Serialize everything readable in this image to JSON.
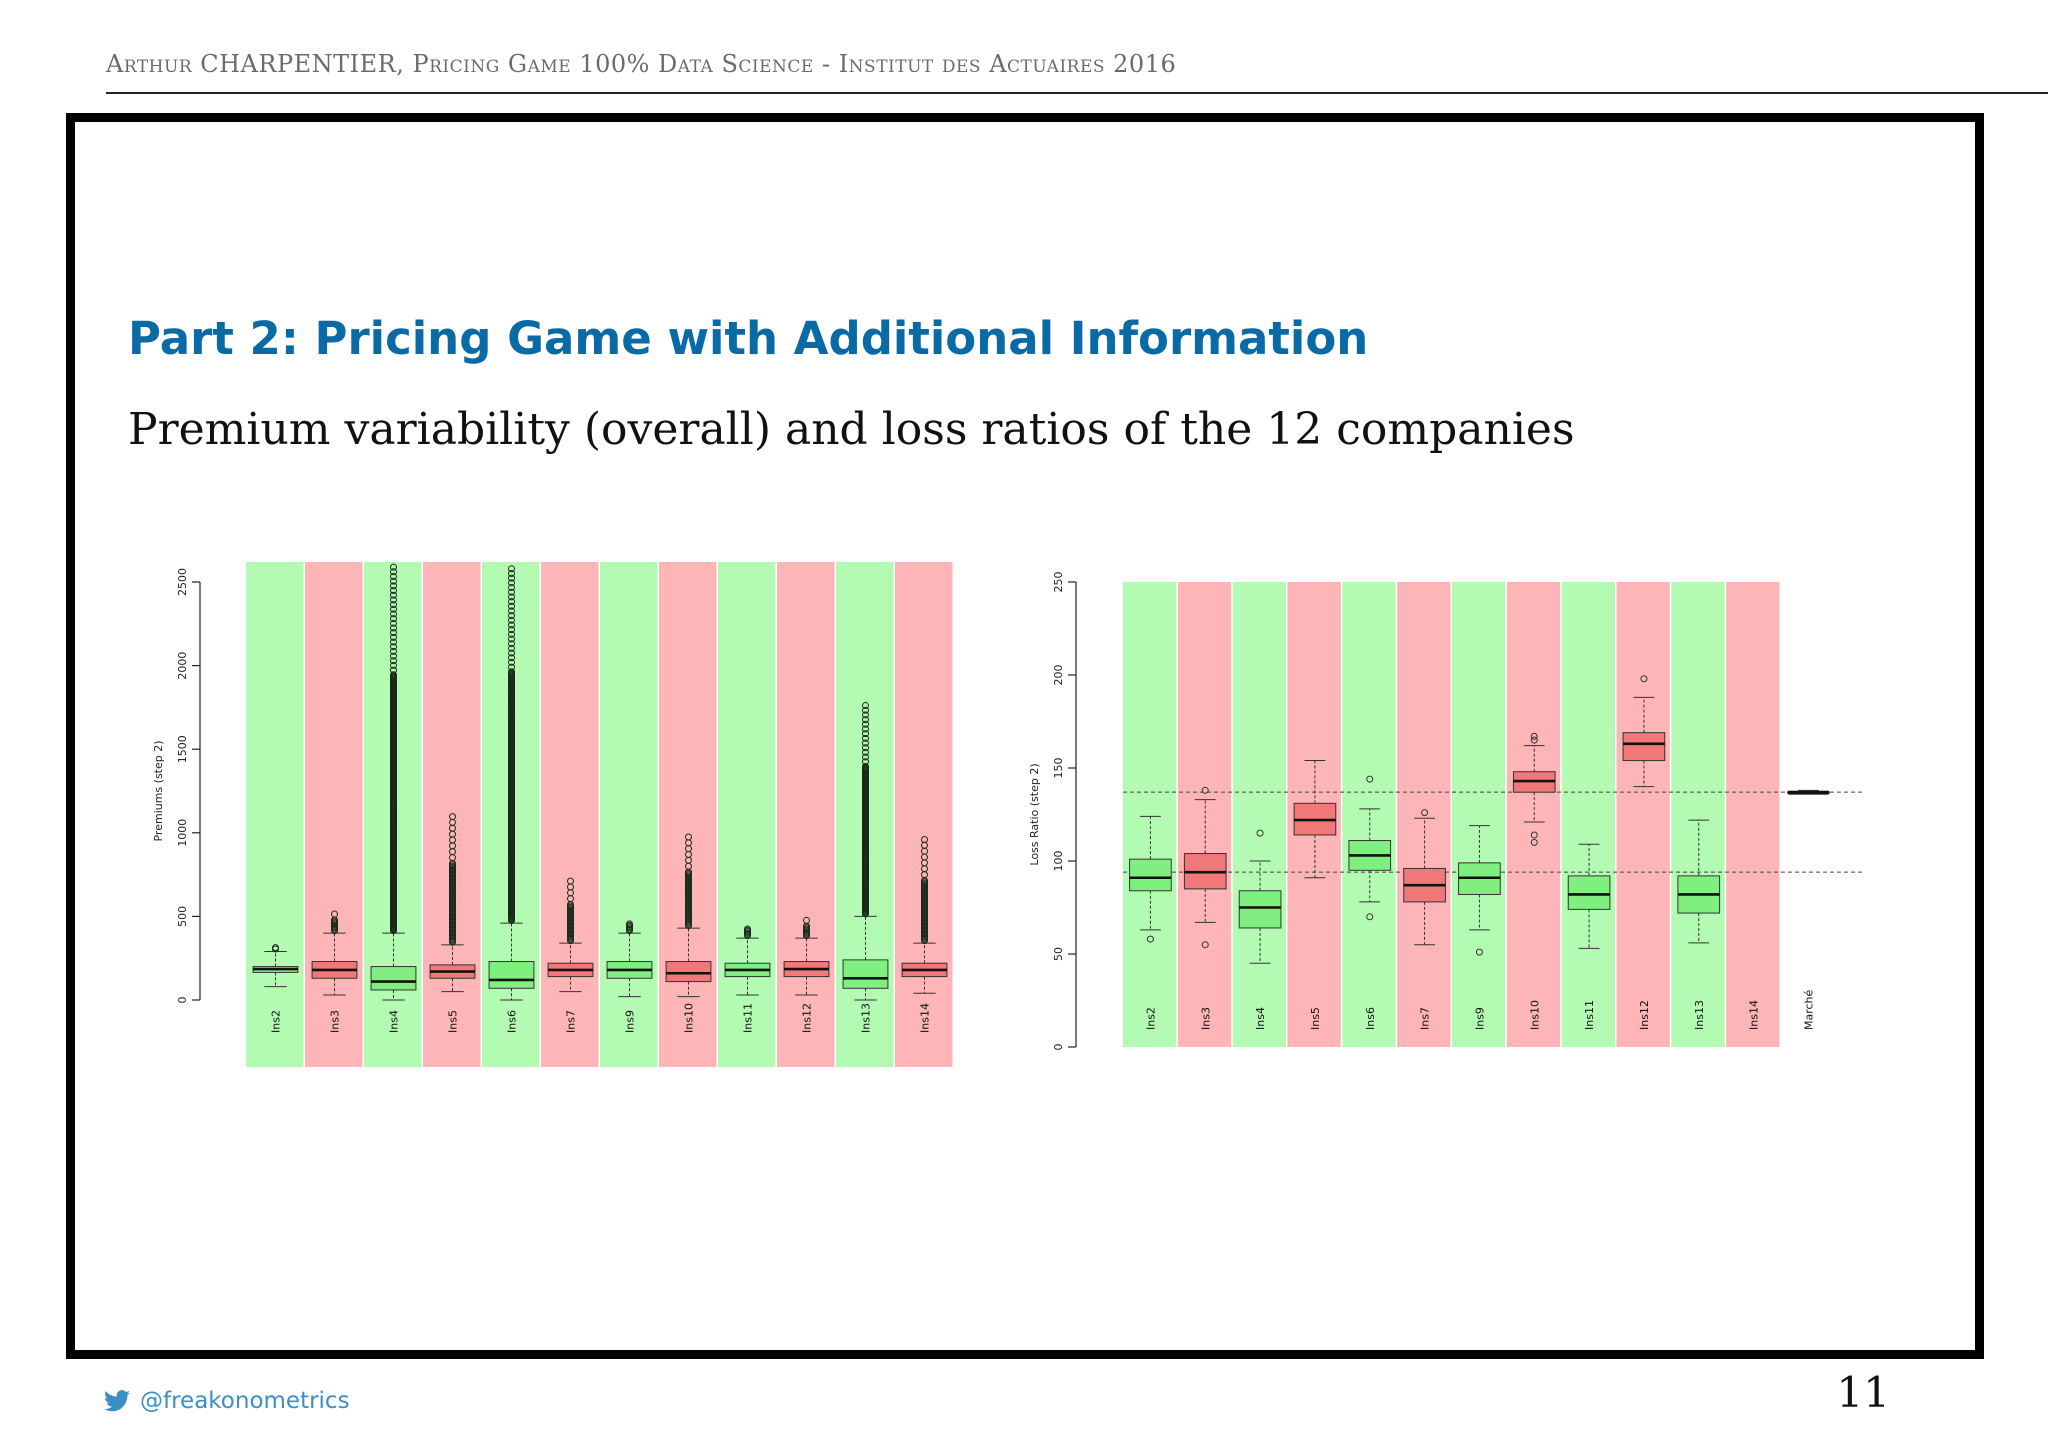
{
  "header": {
    "text": "Arthur CHARPENTIER, Pricing Game 100% Data Science - Institut des Actuaires 2016"
  },
  "slide": {
    "title": "Part 2: Pricing Game with Additional Information",
    "subtitle": "Premium variability (overall) and loss ratios of the 12 companies"
  },
  "footer": {
    "twitter_handle": "@freakonometrics",
    "page_number": "11",
    "icon": "twitter-bird-icon"
  },
  "colors": {
    "green_band": "#b3fbb3",
    "red_band": "#fdb5b8",
    "green_box": "#7ff07f",
    "red_box": "#f07878",
    "title_blue": "#0a6aa6"
  },
  "chart_data": [
    {
      "type": "boxplot",
      "ylabel": "Premiums (step 2)",
      "ylim": [
        0,
        2500
      ],
      "yticks": [
        "0",
        "500",
        "1000",
        "1500",
        "2000",
        "2500"
      ],
      "categories": [
        "Ins2",
        "Ins3",
        "Ins4",
        "Ins5",
        "Ins6",
        "Ins7",
        "Ins9",
        "Ins10",
        "Ins11",
        "Ins12",
        "Ins13",
        "Ins14"
      ],
      "band_colors": [
        "green",
        "red",
        "green",
        "red",
        "green",
        "red",
        "green",
        "red",
        "green",
        "red",
        "green",
        "red"
      ],
      "boxes": [
        {
          "q1": 165,
          "median": 185,
          "q3": 200,
          "whisker_low": 80,
          "whisker_high": 290,
          "outlier_max": 320
        },
        {
          "q1": 130,
          "median": 180,
          "q3": 230,
          "whisker_low": 30,
          "whisker_high": 400,
          "outlier_max": 530
        },
        {
          "q1": 60,
          "median": 110,
          "q3": 200,
          "whisker_low": 0,
          "whisker_high": 400,
          "outlier_max": 2600
        },
        {
          "q1": 130,
          "median": 170,
          "q3": 210,
          "whisker_low": 50,
          "whisker_high": 330,
          "outlier_max": 1130
        },
        {
          "q1": 70,
          "median": 120,
          "q3": 230,
          "whisker_low": 0,
          "whisker_high": 460,
          "outlier_max": 2600
        },
        {
          "q1": 140,
          "median": 180,
          "q3": 220,
          "whisker_low": 50,
          "whisker_high": 340,
          "outlier_max": 720
        },
        {
          "q1": 130,
          "median": 180,
          "q3": 230,
          "whisker_low": 20,
          "whisker_high": 400,
          "outlier_max": 480
        },
        {
          "q1": 110,
          "median": 160,
          "q3": 230,
          "whisker_low": 20,
          "whisker_high": 430,
          "outlier_max": 980
        },
        {
          "q1": 140,
          "median": 180,
          "q3": 220,
          "whisker_low": 30,
          "whisker_high": 370,
          "outlier_max": 450
        },
        {
          "q1": 140,
          "median": 185,
          "q3": 230,
          "whisker_low": 30,
          "whisker_high": 370,
          "outlier_max": 480
        },
        {
          "q1": 70,
          "median": 130,
          "q3": 240,
          "whisker_low": 0,
          "whisker_high": 500,
          "outlier_max": 1780
        },
        {
          "q1": 140,
          "median": 180,
          "q3": 220,
          "whisker_low": 40,
          "whisker_high": 340,
          "outlier_max": 960
        }
      ]
    },
    {
      "type": "boxplot",
      "ylabel": "Loss Ratio (step 2)",
      "ylim": [
        0,
        250
      ],
      "yticks": [
        "0",
        "50",
        "100",
        "150",
        "200",
        "250"
      ],
      "categories": [
        "Ins2",
        "Ins3",
        "Ins4",
        "Ins5",
        "Ins6",
        "Ins7",
        "Ins9",
        "Ins10",
        "Ins11",
        "Ins12",
        "Ins13",
        "Ins14",
        "Marché"
      ],
      "band_colors": [
        "green",
        "red",
        "green",
        "red",
        "green",
        "red",
        "green",
        "red",
        "green",
        "red",
        "green",
        "red"
      ],
      "reference_lines": [
        94,
        137
      ],
      "boxes": [
        {
          "q1": 84,
          "median": 91,
          "q3": 101,
          "whisker_low": 63,
          "whisker_high": 124,
          "outliers": [
            58
          ]
        },
        {
          "q1": 85,
          "median": 94,
          "q3": 104,
          "whisker_low": 67,
          "whisker_high": 133,
          "outliers": [
            55,
            138
          ]
        },
        {
          "q1": 64,
          "median": 75,
          "q3": 84,
          "whisker_low": 45,
          "whisker_high": 100,
          "outliers": [
            115
          ]
        },
        {
          "q1": 114,
          "median": 122,
          "q3": 131,
          "whisker_low": 91,
          "whisker_high": 154,
          "outliers": []
        },
        {
          "q1": 95,
          "median": 103,
          "q3": 111,
          "whisker_low": 78,
          "whisker_high": 128,
          "outliers": [
            70,
            144
          ]
        },
        {
          "q1": 78,
          "median": 87,
          "q3": 96,
          "whisker_low": 55,
          "whisker_high": 123,
          "outliers": [
            126
          ]
        },
        {
          "q1": 82,
          "median": 91,
          "q3": 99,
          "whisker_low": 63,
          "whisker_high": 119,
          "outliers": [
            51
          ]
        },
        {
          "q1": 137,
          "median": 143,
          "q3": 148,
          "whisker_low": 121,
          "whisker_high": 162,
          "outliers": [
            110,
            114,
            165,
            167
          ]
        },
        {
          "q1": 74,
          "median": 82,
          "q3": 92,
          "whisker_low": 53,
          "whisker_high": 109,
          "outliers": []
        },
        {
          "q1": 154,
          "median": 163,
          "q3": 169,
          "whisker_low": 140,
          "whisker_high": 188,
          "outliers": [
            198
          ]
        },
        {
          "q1": 72,
          "median": 82,
          "q3": 92,
          "whisker_low": 56,
          "whisker_high": 122,
          "outliers": []
        },
        null,
        {
          "q1": 136.5,
          "median": 137,
          "q3": 137.5,
          "whisker_low": 136,
          "whisker_high": 138,
          "outliers": []
        }
      ]
    }
  ]
}
